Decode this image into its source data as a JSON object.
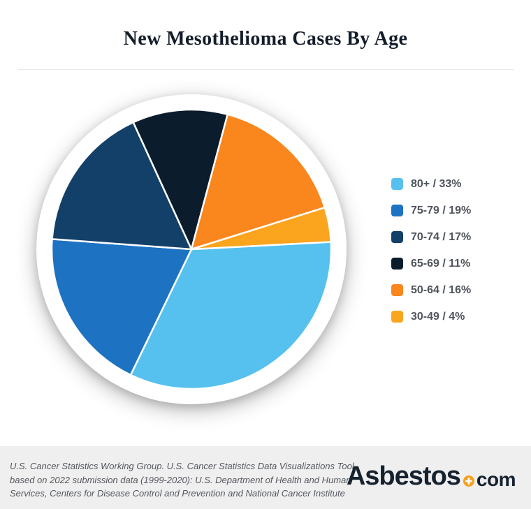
{
  "title": "New Mesothelioma Cases By Age",
  "chart_data": {
    "type": "pie",
    "title": "New Mesothelioma Cases By Age",
    "legend_position": "right",
    "start_angle_clockwise_from_top_deg": 87,
    "slice_border_color": "#ffffff",
    "slices": [
      {
        "label": "80+",
        "value": 33,
        "display": "80+ / 33%",
        "color": "#56c1ee"
      },
      {
        "label": "75-79",
        "value": 19,
        "display": "75-79 / 19%",
        "color": "#1d72c2"
      },
      {
        "label": "70-74",
        "value": 17,
        "display": "70-74 / 17%",
        "color": "#134068"
      },
      {
        "label": "65-69",
        "value": 11,
        "display": "65-69 / 11%",
        "color": "#0b1c2c"
      },
      {
        "label": "50-64",
        "value": 16,
        "display": "50-64 / 16%",
        "color": "#fa861e"
      },
      {
        "label": "30-49",
        "value": 4,
        "display": "30-49 / 4%",
        "color": "#fba51f"
      }
    ]
  },
  "footer": {
    "lines": [
      "U.S. Cancer Statistics Working Group. U.S. Cancer Statistics Data Visualizations Tool,",
      "based on 2022 submission data (1999-2020): U.S. Department of Health and Human",
      "Services, Centers for Disease Control and Prevention and National Cancer Institute"
    ],
    "logo": {
      "brand": "Asbestos",
      "tld": "com",
      "dark_color": "#16222e",
      "plus_color": "#f5a01d"
    }
  }
}
